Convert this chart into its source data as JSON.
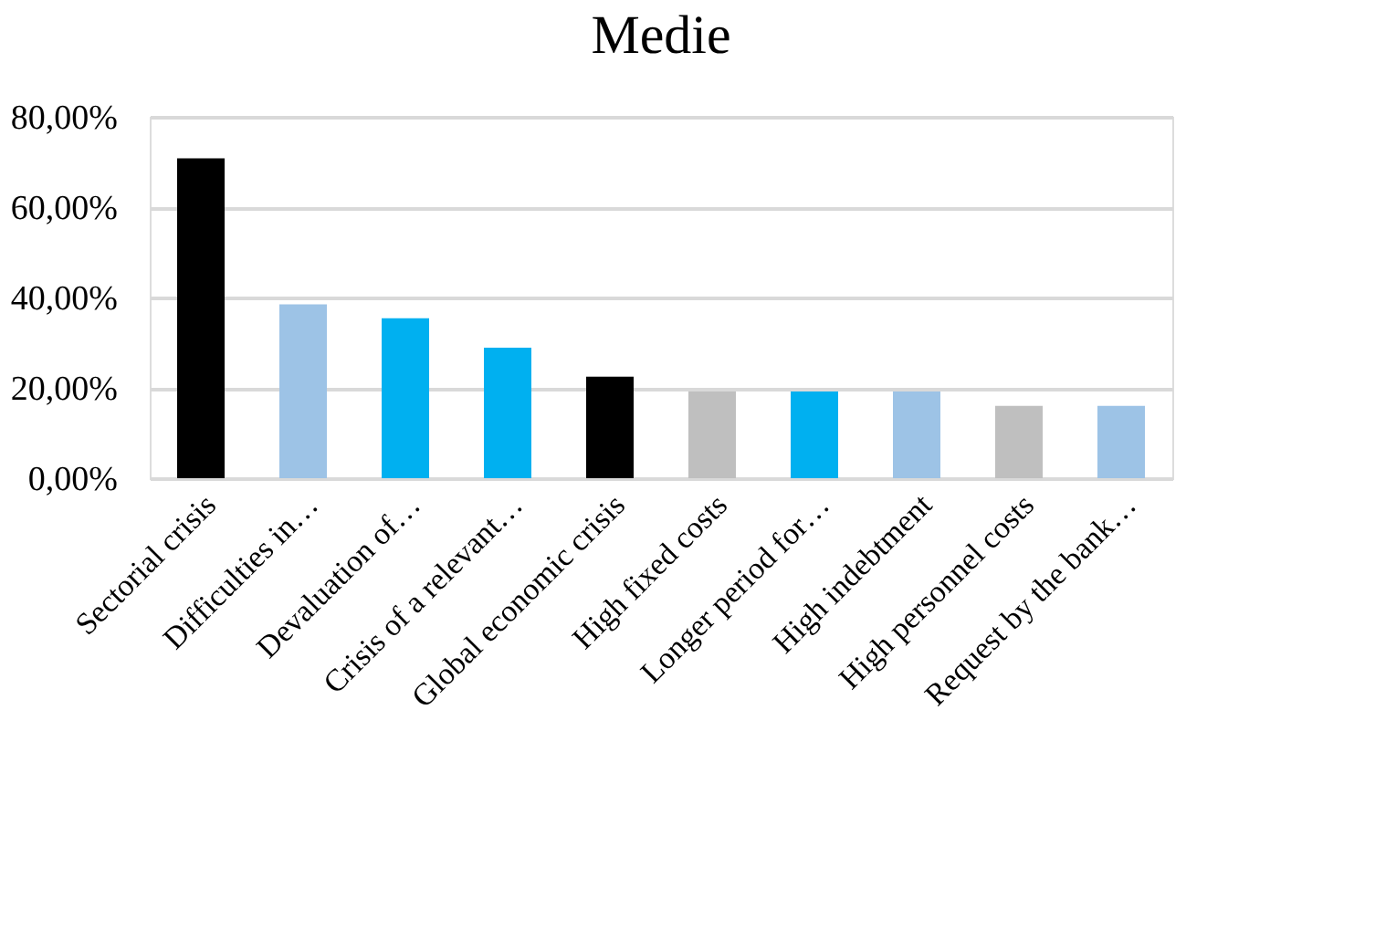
{
  "chart_data": {
    "type": "bar",
    "title": "Medie",
    "categories": [
      "Sectorial crisis",
      "Difficulties in…",
      "Devaluation of…",
      "Crisis of a relevant…",
      "Global economic crisis",
      "High fixed costs",
      "Longer period for…",
      "High indebtment",
      "High personnel costs",
      "Request by the bank…"
    ],
    "values": [
      70.8,
      38.5,
      35.4,
      28.9,
      22.5,
      19.2,
      19.2,
      19.2,
      16.0,
      16.0
    ],
    "colors": [
      "#000000",
      "#9dc3e6",
      "#00b0f0",
      "#00b0f0",
      "#000000",
      "#bfbfbf",
      "#00b0f0",
      "#9dc3e6",
      "#bfbfbf",
      "#9dc3e6"
    ],
    "ylim": [
      0,
      80
    ],
    "yticks": [
      {
        "value": 0,
        "label": "0,00%"
      },
      {
        "value": 20,
        "label": "20,00%"
      },
      {
        "value": 40,
        "label": "40,00%"
      },
      {
        "value": 60,
        "label": "60,00%"
      },
      {
        "value": 80,
        "label": "80,00%"
      }
    ],
    "grid": "y"
  }
}
